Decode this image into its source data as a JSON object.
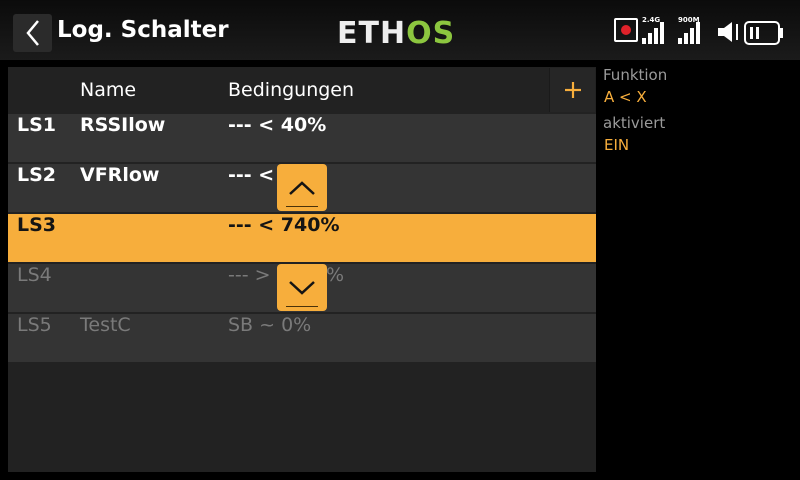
{
  "header": {
    "title": "Log. Schalter",
    "logo_left": "ETH",
    "logo_right": "OS",
    "signal1_label": "2.4G",
    "signal2_label": "900M"
  },
  "table": {
    "columns": [
      "Name",
      "Bedingungen"
    ],
    "rows": [
      {
        "id": "LS1",
        "name": "RSSIlow",
        "condition": "--- < 40%"
      },
      {
        "id": "LS2",
        "name": "VFRlow",
        "condition": "--- < 5"
      },
      {
        "id": "LS3",
        "name": "",
        "condition": "--- < 740%"
      },
      {
        "id": "LS4",
        "name": "",
        "condition": "--- >"
      },
      {
        "id": "LS5",
        "name": "TestC",
        "condition": "SB ~ 0%"
      }
    ],
    "ls4_condition_tail": "%"
  },
  "side_panel": {
    "function_label": "Funktion",
    "function_value": "A < X",
    "active_label": "aktiviert",
    "active_value": "EIN"
  },
  "colors": {
    "accent": "#f7ae3c",
    "logo_green": "#8cc63f",
    "row_bg": "#343434",
    "panel_bg": "#222222"
  }
}
